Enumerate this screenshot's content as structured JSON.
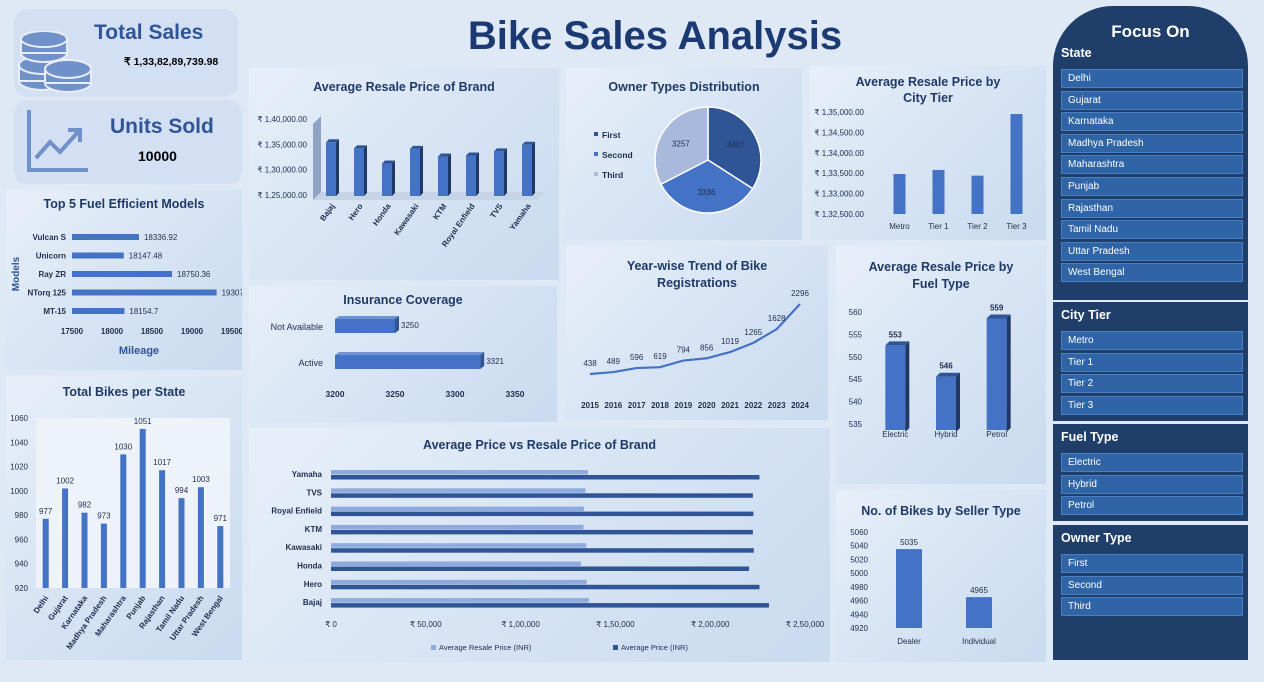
{
  "dashboard_title": "Bike Sales Analysis",
  "kpis": {
    "total_sales_label": "Total Sales",
    "total_sales_value": "₹ 1,33,82,89,739.98",
    "units_sold_label": "Units Sold",
    "units_sold_value": "10000"
  },
  "focus_panel": {
    "title": "Focus On",
    "groups": [
      {
        "title": "State",
        "items": [
          "Delhi",
          "Gujarat",
          "Karnataka",
          "Madhya Pradesh",
          "Maharashtra",
          "Punjab",
          "Rajasthan",
          "Tamil Nadu",
          "Uttar Pradesh",
          "West Bengal"
        ]
      },
      {
        "title": "City Tier",
        "items": [
          "Metro",
          "Tier 1",
          "Tier 2",
          "Tier 3"
        ]
      },
      {
        "title": "Fuel Type",
        "items": [
          "Electric",
          "Hybrid",
          "Petrol"
        ]
      },
      {
        "title": "Owner Type",
        "items": [
          "First",
          "Second",
          "Third"
        ]
      }
    ]
  },
  "chart_data": [
    {
      "id": "resale_by_brand",
      "type": "bar",
      "title": "Average Resale Price of Brand",
      "categories": [
        "Bajaj",
        "Hero",
        "Honda",
        "Kawasaki",
        "KTM",
        "Royal Enfield",
        "TVS",
        "Yamaha"
      ],
      "values": [
        136000,
        134800,
        131800,
        134700,
        133200,
        133400,
        134200,
        135500
      ],
      "ylim": [
        125000,
        140000
      ],
      "yticks": [
        "₹ 1,25,000.00",
        "₹ 1,30,000.00",
        "₹ 1,35,000.00",
        "₹ 1,40,000.00"
      ],
      "ytick_values": [
        125000,
        130000,
        135000,
        140000
      ]
    },
    {
      "id": "owner_types",
      "type": "pie",
      "title": "Owner Types Distribution",
      "categories": [
        "First",
        "Second",
        "Third"
      ],
      "values": [
        3407,
        3336,
        3257
      ],
      "colors": [
        "#2f5597",
        "#4472c4",
        "#a9b9db"
      ]
    },
    {
      "id": "resale_by_city_tier",
      "type": "bar",
      "title": "Average Resale Price by City Tier",
      "categories": [
        "Metro",
        "Tier 1",
        "Tier 2",
        "Tier 3"
      ],
      "values": [
        133480,
        133580,
        133440,
        134950
      ],
      "ylim": [
        132500,
        135000
      ],
      "yticks": [
        "₹ 1,32,500.00",
        "₹ 1,33,000.00",
        "₹ 1,33,500.00",
        "₹ 1,34,000.00",
        "₹ 1,34,500.00",
        "₹ 1,35,000.00"
      ],
      "ytick_values": [
        132500,
        133000,
        133500,
        134000,
        134500,
        135000
      ]
    },
    {
      "id": "fuel_efficient_models",
      "type": "bar",
      "orientation": "horizontal",
      "title": "Top 5 Fuel Efficient Models",
      "categories": [
        "Vulcan S",
        "Unicorn",
        "Ray ZR",
        "NTorq 125",
        "MT-15"
      ],
      "values": [
        18336.92,
        18147.48,
        18750.36,
        19307.08,
        18154.7
      ],
      "value_labels": [
        "18336.92",
        "18147.48",
        "18750.36",
        "19307.08",
        "18154.7"
      ],
      "xlabel": "Mileage",
      "ylabel": "Models",
      "xlim": [
        17500,
        19500
      ],
      "xticks": [
        "17500",
        "18000",
        "18500",
        "19000",
        "19500"
      ]
    },
    {
      "id": "insurance_coverage",
      "type": "bar",
      "orientation": "horizontal",
      "title": "Insurance Coverage",
      "categories": [
        "Not Available",
        "Active"
      ],
      "values": [
        3250,
        3321
      ],
      "xlim": [
        3200,
        3350
      ],
      "xticks": [
        "3200",
        "3250",
        "3300",
        "3350"
      ]
    },
    {
      "id": "registrations_trend",
      "type": "line",
      "title": "Year-wise Trend of Bike Registrations",
      "x": [
        "2015",
        "2016",
        "2017",
        "2018",
        "2019",
        "2020",
        "2021",
        "2022",
        "2023",
        "2024"
      ],
      "values": [
        438,
        489,
        596,
        619,
        794,
        856,
        1019,
        1265,
        1628,
        2296
      ]
    },
    {
      "id": "resale_by_fuel",
      "type": "bar",
      "title": "Average Resale Price by Fuel Type",
      "categories": [
        "Electric",
        "Hybrid",
        "Petrol"
      ],
      "values": [
        553,
        546,
        559
      ],
      "ylim": [
        535,
        560
      ],
      "yticks": [
        "535",
        "540",
        "545",
        "550",
        "555",
        "560"
      ]
    },
    {
      "id": "bikes_per_state",
      "type": "bar",
      "title": "Total Bikes per State",
      "categories": [
        "Delhi",
        "Gujarat",
        "Karnataka",
        "Madhya Pradesh",
        "Maharashtra",
        "Punjab",
        "Rajasthan",
        "Tamil Nadu",
        "Uttar Pradesh",
        "West Bengal"
      ],
      "values": [
        977,
        1002,
        982,
        973,
        1030,
        1051,
        1017,
        994,
        1003,
        971
      ],
      "ylim": [
        920,
        1060
      ],
      "yticks": [
        "920",
        "940",
        "960",
        "980",
        "1000",
        "1020",
        "1040",
        "1060"
      ]
    },
    {
      "id": "avg_vs_resale",
      "type": "bar",
      "orientation": "horizontal",
      "title": "Average Price vs Resale Price of Brand",
      "categories": [
        "Yamaha",
        "TVS",
        "Royal Enfield",
        "KTM",
        "Kawasaki",
        "Honda",
        "Hero",
        "Bajaj"
      ],
      "series": [
        {
          "name": "Average Resale Price (INR)",
          "values": [
            135500,
            134200,
            133400,
            133200,
            134700,
            131800,
            134800,
            136000
          ]
        },
        {
          "name": "Average Price (INR)",
          "values": [
            226000,
            222500,
            222800,
            222500,
            223000,
            220500,
            226000,
            231000
          ]
        }
      ],
      "xlim": [
        0,
        250000
      ],
      "xticks": [
        "₹ 0",
        "₹ 50,000",
        "₹ 1,00,000",
        "₹ 1,50,000",
        "₹ 2,00,000",
        "₹ 2,50,000"
      ]
    },
    {
      "id": "seller_type",
      "type": "bar",
      "title": "No. of Bikes by Seller Type",
      "categories": [
        "Dealer",
        "Individual"
      ],
      "values": [
        5035,
        4965
      ],
      "ylim": [
        4920,
        5060
      ],
      "yticks": [
        "4920",
        "4940",
        "4960",
        "4980",
        "5000",
        "5020",
        "5040",
        "5060"
      ]
    }
  ]
}
